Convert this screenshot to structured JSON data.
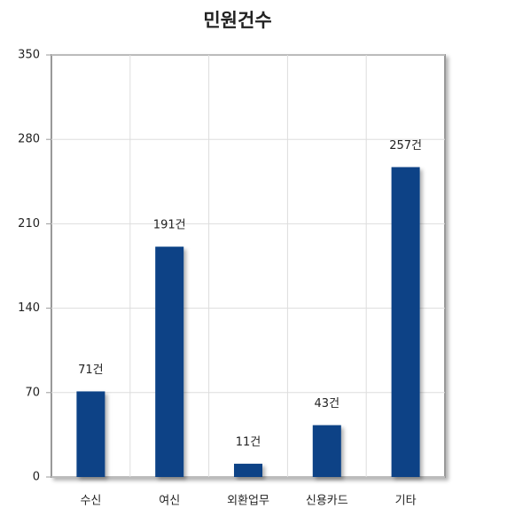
{
  "chart_data": {
    "type": "bar",
    "title": "민원건수",
    "categories": [
      "수신",
      "여신",
      "외환업무",
      "신용카드",
      "기타"
    ],
    "values": [
      71,
      191,
      11,
      43,
      257
    ],
    "value_labels": [
      "71건",
      "191건",
      "11건",
      "43건",
      "257건"
    ],
    "color": "#0a4386",
    "ylim": [
      0,
      350
    ],
    "yticks": [
      0,
      70,
      140,
      210,
      280,
      350
    ],
    "grid": true
  }
}
